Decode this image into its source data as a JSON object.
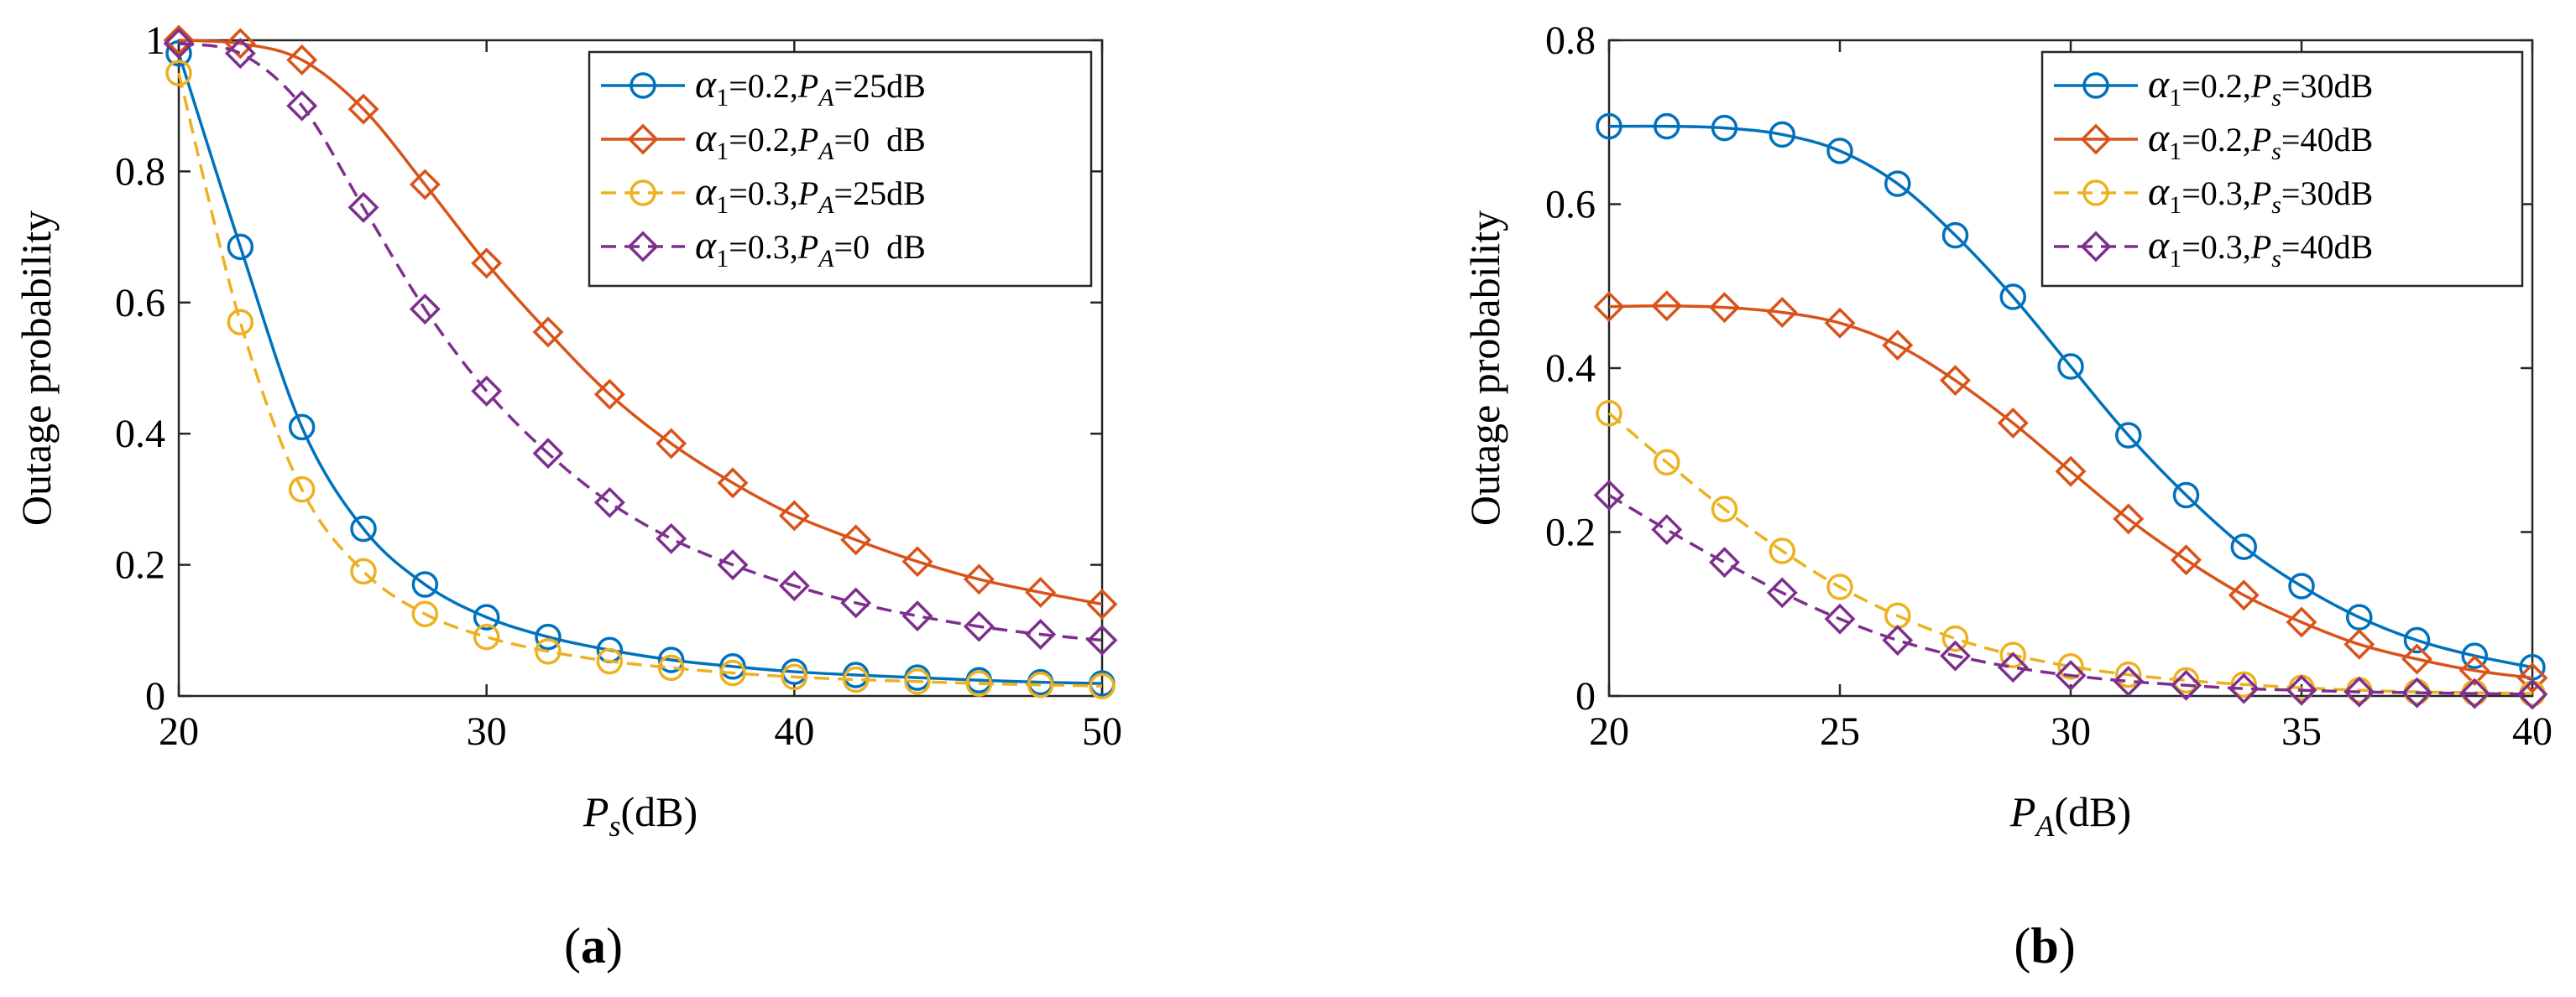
{
  "chart_data": [
    {
      "type": "line",
      "panel_label": "a",
      "caption_open": "(",
      "caption_close": ")",
      "ylabel": "Outage probability",
      "xlabel_var": "P",
      "xlabel_sub": "s",
      "xlabel_unit": "(dB)",
      "xlim": [
        20,
        50
      ],
      "ylim": [
        0,
        1
      ],
      "xticks": [
        20,
        30,
        40,
        50
      ],
      "yticks": [
        0,
        0.2,
        0.4,
        0.6,
        0.8,
        1
      ],
      "ytick_labels": [
        "0",
        "0.2",
        "0.4",
        "0.6",
        "0.8",
        "1"
      ],
      "legend_position": "top-right",
      "x": [
        20,
        22,
        24,
        26,
        28,
        30,
        32,
        34,
        36,
        38,
        40,
        42,
        44,
        46,
        48,
        50
      ],
      "series": [
        {
          "name": "α1=0.2,PA=25dB",
          "legend": {
            "alpha": "α",
            "alpha_sub": "1",
            "alpha_val": "=0.2,",
            "p": "P",
            "p_sub": "A",
            "p_val": "=25dB"
          },
          "color": "#0072BD",
          "marker": "circle",
          "dashed": false,
          "values": [
            0.98,
            0.685,
            0.41,
            0.255,
            0.17,
            0.12,
            0.09,
            0.07,
            0.055,
            0.045,
            0.037,
            0.032,
            0.028,
            0.024,
            0.021,
            0.019
          ]
        },
        {
          "name": "α1=0.2,PA=0 dB",
          "legend": {
            "alpha": "α",
            "alpha_sub": "1",
            "alpha_val": "=0.2,",
            "p": "P",
            "p_sub": "A",
            "p_val": "=0  dB"
          },
          "color": "#D95319",
          "marker": "diamond",
          "dashed": false,
          "values": [
            1.0,
            0.995,
            0.97,
            0.895,
            0.78,
            0.66,
            0.555,
            0.46,
            0.385,
            0.325,
            0.275,
            0.238,
            0.205,
            0.178,
            0.158,
            0.14
          ]
        },
        {
          "name": "α1=0.3,PA=25dB",
          "legend": {
            "alpha": "α",
            "alpha_sub": "1",
            "alpha_val": "=0.3,",
            "p": "P",
            "p_sub": "A",
            "p_val": "=25dB"
          },
          "color": "#EDB120",
          "marker": "circle",
          "dashed": true,
          "values": [
            0.95,
            0.57,
            0.315,
            0.19,
            0.125,
            0.09,
            0.068,
            0.053,
            0.043,
            0.035,
            0.029,
            0.025,
            0.022,
            0.019,
            0.017,
            0.015
          ]
        },
        {
          "name": "α1=0.3,PA=0 dB",
          "legend": {
            "alpha": "α",
            "alpha_sub": "1",
            "alpha_val": "=0.3,",
            "p": "P",
            "p_sub": "A",
            "p_val": "=0  dB"
          },
          "color": "#7E2F8E",
          "marker": "diamond",
          "dashed": true,
          "values": [
            0.995,
            0.98,
            0.9,
            0.745,
            0.59,
            0.465,
            0.37,
            0.295,
            0.24,
            0.2,
            0.168,
            0.142,
            0.122,
            0.106,
            0.094,
            0.085
          ]
        }
      ]
    },
    {
      "type": "line",
      "panel_label": "b",
      "caption_open": "(",
      "caption_close": ")",
      "ylabel": "Outage probability",
      "xlabel_var": "P",
      "xlabel_sub": "A",
      "xlabel_unit": "(dB)",
      "xlim": [
        20,
        40
      ],
      "ylim": [
        0,
        0.8
      ],
      "xticks": [
        20,
        25,
        30,
        35,
        40
      ],
      "yticks": [
        0,
        0.2,
        0.4,
        0.6,
        0.8
      ],
      "ytick_labels": [
        "0",
        "0.2",
        "0.4",
        "0.6",
        "0.8"
      ],
      "legend_position": "top-right",
      "x": [
        20,
        21.25,
        22.5,
        23.75,
        25,
        26.25,
        27.5,
        28.75,
        30,
        31.25,
        32.5,
        33.75,
        35,
        36.25,
        37.5,
        38.75,
        40
      ],
      "series": [
        {
          "name": "α1=0.2,Ps=30dB",
          "legend": {
            "alpha": "α",
            "alpha_sub": "1",
            "alpha_val": "=0.2,",
            "p": "P",
            "p_sub": "s",
            "p_val": "=30dB"
          },
          "color": "#0072BD",
          "marker": "circle",
          "dashed": false,
          "values": [
            0.695,
            0.695,
            0.693,
            0.685,
            0.665,
            0.625,
            0.562,
            0.487,
            0.402,
            0.318,
            0.245,
            0.182,
            0.134,
            0.096,
            0.068,
            0.049,
            0.035
          ]
        },
        {
          "name": "α1=0.2,Ps=40dB",
          "legend": {
            "alpha": "α",
            "alpha_sub": "1",
            "alpha_val": "=0.2,",
            "p": "P",
            "p_sub": "s",
            "p_val": "=40dB"
          },
          "color": "#D95319",
          "marker": "diamond",
          "dashed": false,
          "values": [
            0.475,
            0.476,
            0.474,
            0.468,
            0.455,
            0.428,
            0.385,
            0.333,
            0.274,
            0.216,
            0.166,
            0.123,
            0.09,
            0.063,
            0.045,
            0.031,
            0.022
          ]
        },
        {
          "name": "α1=0.3,Ps=30dB",
          "legend": {
            "alpha": "α",
            "alpha_sub": "1",
            "alpha_val": "=0.3,",
            "p": "P",
            "p_sub": "s",
            "p_val": "=30dB"
          },
          "color": "#EDB120",
          "marker": "circle",
          "dashed": true,
          "values": [
            0.345,
            0.285,
            0.228,
            0.177,
            0.133,
            0.098,
            0.07,
            0.05,
            0.036,
            0.026,
            0.019,
            0.014,
            0.01,
            0.007,
            0.005,
            0.004,
            0.003
          ]
        },
        {
          "name": "α1=0.3,Ps=40dB",
          "legend": {
            "alpha": "α",
            "alpha_sub": "1",
            "alpha_val": "=0.3,",
            "p": "P",
            "p_sub": "s",
            "p_val": "=40dB"
          },
          "color": "#7E2F8E",
          "marker": "diamond",
          "dashed": true,
          "values": [
            0.245,
            0.203,
            0.163,
            0.126,
            0.094,
            0.068,
            0.049,
            0.035,
            0.025,
            0.018,
            0.013,
            0.009,
            0.007,
            0.005,
            0.004,
            0.003,
            0.002
          ]
        }
      ]
    }
  ]
}
